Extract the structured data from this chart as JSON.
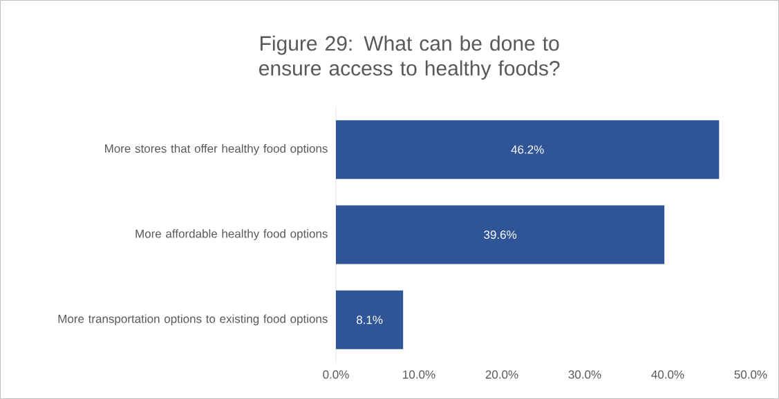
{
  "chart_data": {
    "type": "bar",
    "orientation": "horizontal",
    "title": "Figure 29: What can be done to ensure access to healthy foods?",
    "categories": [
      "More stores that offer healthy food options",
      "More affordable healthy food options",
      "More transportation options to existing food options"
    ],
    "values": [
      46.2,
      39.6,
      8.1
    ],
    "value_labels": [
      "46.2%",
      "39.6%",
      "8.1%"
    ],
    "color": "#2f5597",
    "xlim": [
      0,
      50
    ],
    "xticks": [
      {
        "value": 0,
        "label": "0.0%"
      },
      {
        "value": 10,
        "label": "10.0%"
      },
      {
        "value": 20,
        "label": "20.0%"
      },
      {
        "value": 30,
        "label": "30.0%"
      },
      {
        "value": 40,
        "label": "40.0%"
      },
      {
        "value": 50,
        "label": "50.0%"
      }
    ],
    "grid": false
  }
}
